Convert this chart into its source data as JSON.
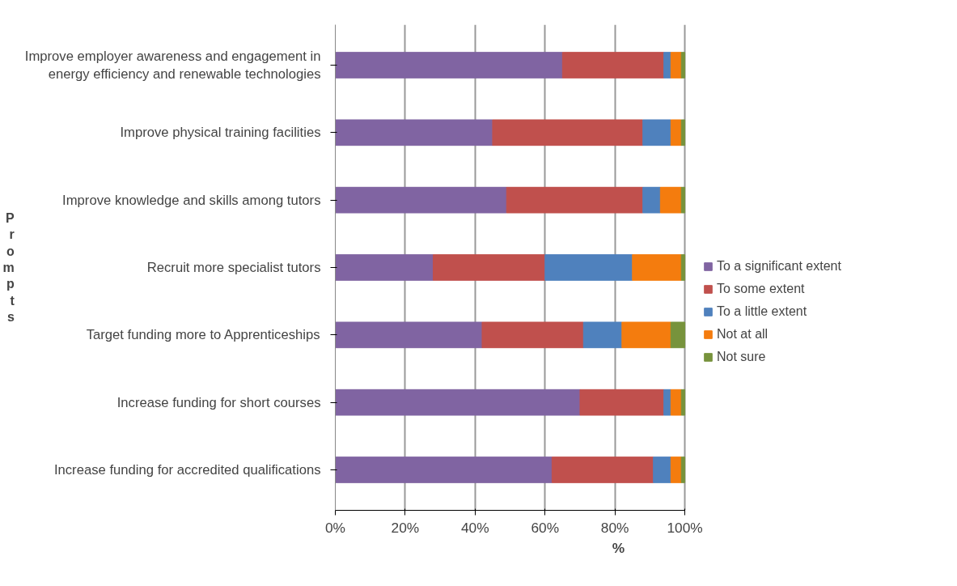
{
  "chart_data": {
    "type": "bar",
    "orientation": "horizontal",
    "stacked": true,
    "xlabel": "%",
    "ylabel": "Prompts",
    "categories": [
      "Improve employer awareness and engagement in energy efficiency and renewable technologies",
      "Improve physical training facilities",
      "Improve knowledge and skills among tutors",
      "Recruit more specialist tutors",
      "Target funding more to Apprenticeships",
      "Increase funding for short courses",
      "Increase funding for accredited qualifications"
    ],
    "series": [
      {
        "name": "To a significant extent",
        "color": "#8064a2",
        "values": [
          65,
          45,
          49,
          28,
          42,
          70,
          62
        ]
      },
      {
        "name": "To some extent",
        "color": "#c0504d",
        "values": [
          29,
          43,
          39,
          32,
          29,
          24,
          29
        ]
      },
      {
        "name": "To a little extent",
        "color": "#4f81bd",
        "values": [
          2,
          8,
          5,
          25,
          11,
          2,
          5
        ]
      },
      {
        "name": "Not at all",
        "color": "#f47c0e",
        "values": [
          3,
          3,
          6,
          14,
          14,
          3,
          3
        ]
      },
      {
        "name": "Not sure",
        "color": "#77933c",
        "values": [
          1,
          1,
          1,
          1,
          4,
          1,
          1
        ]
      }
    ],
    "xlim": [
      0,
      100
    ],
    "xticks": [
      {
        "value": 0,
        "label": "0%"
      },
      {
        "value": 20,
        "label": "20%"
      },
      {
        "value": 40,
        "label": "40%"
      },
      {
        "value": 60,
        "label": "60%"
      },
      {
        "value": 80,
        "label": "80%"
      },
      {
        "value": 100,
        "label": "100%"
      }
    ],
    "grid": "x",
    "legend": "right"
  }
}
